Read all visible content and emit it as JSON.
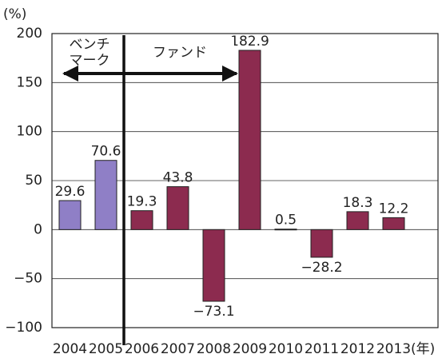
{
  "chart_data": {
    "type": "bar",
    "y_label": "(%)",
    "x_label": "(年)",
    "categories": [
      "2004",
      "2005",
      "2006",
      "2007",
      "2008",
      "2009",
      "2010",
      "2011",
      "2012",
      "2013"
    ],
    "values": [
      29.6,
      70.6,
      19.3,
      43.8,
      -73.1,
      182.9,
      0.5,
      -28.2,
      18.3,
      12.2
    ],
    "value_labels": [
      "29.6",
      "70.6",
      "19.3",
      "43.8",
      "−73.1",
      "182.9",
      "0.5",
      "−28.2",
      "18.3",
      "12.2"
    ],
    "colors": [
      "#8f7fc6",
      "#8f7fc6",
      "#8c2b4f",
      "#8c2b4f",
      "#8c2b4f",
      "#8c2b4f",
      "#8c2b4f",
      "#8c2b4f",
      "#8c2b4f",
      "#8c2b4f"
    ],
    "ylim": [
      -100,
      200
    ],
    "yticks": [
      {
        "value": -100,
        "label": "−100"
      },
      {
        "value": -50,
        "label": "−50"
      },
      0,
      50,
      100,
      150,
      200
    ],
    "grid": true,
    "annotations": {
      "benchmark": [
        "ベンチ",
        "マーク"
      ],
      "fund": "ファンド"
    }
  }
}
